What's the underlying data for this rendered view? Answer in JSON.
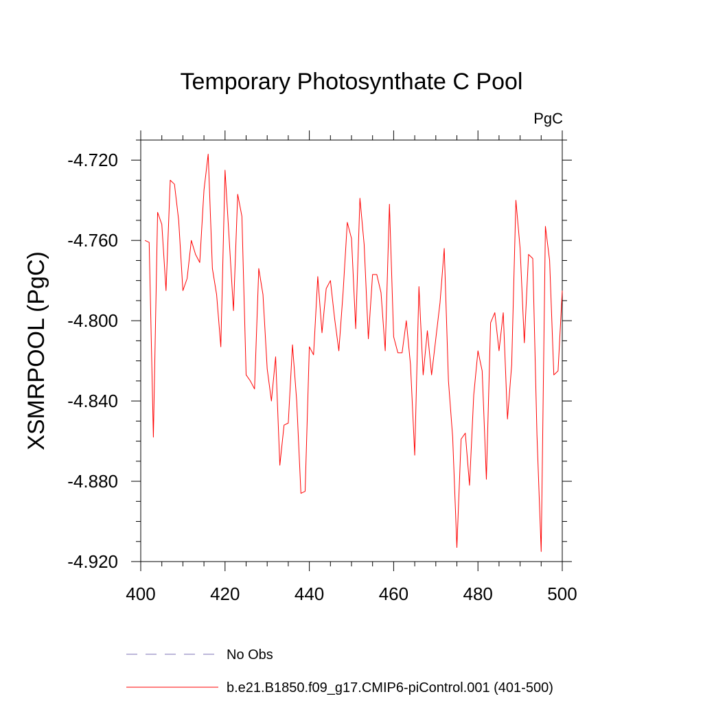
{
  "chart_data": {
    "type": "line",
    "title": "Temporary Photosynthate C Pool",
    "units_label": "PgC",
    "ylabel": "XSMRPOOL  (PgC)",
    "xlabel": "",
    "xlim": [
      400,
      500
    ],
    "ylim": [
      -4.92,
      -4.71
    ],
    "x_ticks": [
      400,
      420,
      440,
      460,
      480,
      500
    ],
    "x_tick_labels": [
      "400",
      "420",
      "440",
      "460",
      "480",
      "500"
    ],
    "y_ticks": [
      -4.72,
      -4.76,
      -4.8,
      -4.84,
      -4.88,
      -4.92
    ],
    "y_tick_labels": [
      "-4.720",
      "-4.760",
      "-4.800",
      "-4.840",
      "-4.880",
      "-4.920"
    ],
    "grid": false,
    "legend": {
      "placement": "bottom"
    },
    "series": [
      {
        "name": "No Obs",
        "color": "#7b6fb5",
        "style": "dashed",
        "values": []
      },
      {
        "name": "b.e21.B1850.f09_g17.CMIP6-piControl.001 (401-500)",
        "color": "#ff0000",
        "style": "solid",
        "x": [
          401,
          402,
          403,
          404,
          405,
          406,
          407,
          408,
          409,
          410,
          411,
          412,
          413,
          414,
          415,
          416,
          417,
          418,
          419,
          420,
          421,
          422,
          423,
          424,
          425,
          426,
          427,
          428,
          429,
          430,
          431,
          432,
          433,
          434,
          435,
          436,
          437,
          438,
          439,
          440,
          441,
          442,
          443,
          444,
          445,
          446,
          447,
          448,
          449,
          450,
          451,
          452,
          453,
          454,
          455,
          456,
          457,
          458,
          459,
          460,
          461,
          462,
          463,
          464,
          465,
          466,
          467,
          468,
          469,
          470,
          471,
          472,
          473,
          474,
          475,
          476,
          477,
          478,
          479,
          480,
          481,
          482,
          483,
          484,
          485,
          486,
          487,
          488,
          489,
          490,
          491,
          492,
          493,
          494,
          495,
          496,
          497,
          498,
          499,
          500
        ],
        "values": [
          -4.76,
          -4.761,
          -4.858,
          -4.746,
          -4.752,
          -4.785,
          -4.73,
          -4.732,
          -4.75,
          -4.785,
          -4.779,
          -4.76,
          -4.767,
          -4.771,
          -4.735,
          -4.717,
          -4.774,
          -4.787,
          -4.813,
          -4.725,
          -4.76,
          -4.795,
          -4.737,
          -4.748,
          -4.827,
          -4.83,
          -4.834,
          -4.774,
          -4.787,
          -4.824,
          -4.84,
          -4.818,
          -4.872,
          -4.852,
          -4.851,
          -4.812,
          -4.84,
          -4.886,
          -4.885,
          -4.813,
          -4.817,
          -4.778,
          -4.806,
          -4.784,
          -4.78,
          -4.799,
          -4.815,
          -4.786,
          -4.751,
          -4.759,
          -4.804,
          -4.739,
          -4.762,
          -4.809,
          -4.777,
          -4.777,
          -4.786,
          -4.815,
          -4.742,
          -4.808,
          -4.816,
          -4.816,
          -4.8,
          -4.822,
          -4.867,
          -4.783,
          -4.827,
          -4.805,
          -4.827,
          -4.809,
          -4.791,
          -4.764,
          -4.83,
          -4.858,
          -4.913,
          -4.859,
          -4.856,
          -4.882,
          -4.837,
          -4.815,
          -4.825,
          -4.879,
          -4.801,
          -4.796,
          -4.815,
          -4.796,
          -4.849,
          -4.822,
          -4.74,
          -4.764,
          -4.811,
          -4.767,
          -4.769,
          -4.857,
          -4.915,
          -4.753,
          -4.77,
          -4.827,
          -4.825,
          -4.785
        ]
      }
    ]
  }
}
